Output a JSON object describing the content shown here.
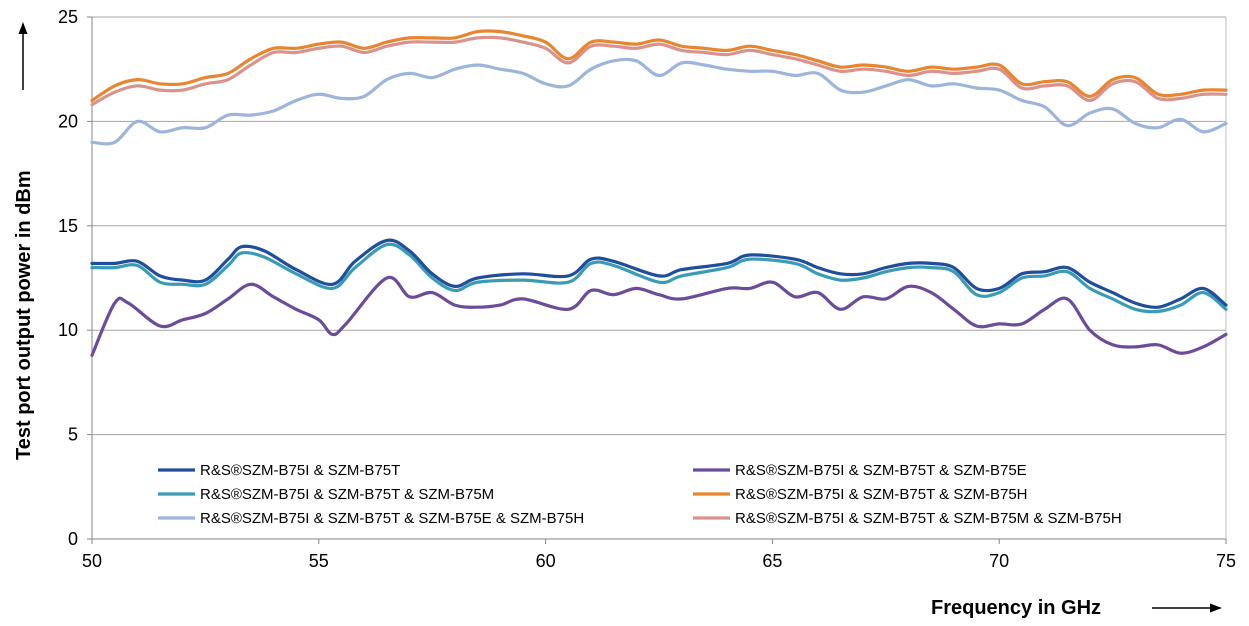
{
  "chart_data": {
    "type": "line",
    "title": "",
    "xlabel": "Frequency in GHz",
    "ylabel": "Test port output power in dBm",
    "xlim": [
      50,
      75
    ],
    "ylim": [
      0,
      25
    ],
    "xticks": [
      50,
      55,
      60,
      65,
      70,
      75
    ],
    "yticks": [
      0,
      5,
      10,
      15,
      20,
      25
    ],
    "grid": "horizontal",
    "legend_position": "bottom-inside",
    "series": [
      {
        "name": "R&S®SZM-B75I & SZM-B75T",
        "color": "#1F4E9C",
        "x": [
          50,
          50.5,
          51,
          51.5,
          52,
          52.5,
          53,
          53.3,
          53.8,
          54.5,
          55.3,
          55.8,
          56.5,
          57,
          57.5,
          58,
          58.5,
          59.5,
          60.5,
          61,
          61.5,
          62.5,
          63,
          64,
          64.5,
          65.5,
          66,
          66.5,
          67,
          67.5,
          68,
          68.5,
          69,
          69.5,
          70,
          70.5,
          71,
          71.5,
          72,
          72.5,
          73,
          73.5,
          74,
          74.5,
          75
        ],
        "y": [
          13.2,
          13.2,
          13.3,
          12.6,
          12.4,
          12.4,
          13.4,
          14.0,
          13.8,
          12.9,
          12.2,
          13.3,
          14.3,
          13.8,
          12.7,
          12.1,
          12.5,
          12.7,
          12.6,
          13.4,
          13.3,
          12.6,
          12.9,
          13.2,
          13.6,
          13.4,
          13.0,
          12.7,
          12.7,
          13.0,
          13.2,
          13.2,
          13.0,
          12.0,
          12.0,
          12.7,
          12.8,
          13.0,
          12.3,
          11.8,
          11.3,
          11.1,
          11.5,
          12.0,
          11.2
        ]
      },
      {
        "name": "R&S®SZM-B75I & SZM-B75T & SZM-B75E",
        "color": "#6B4C9A",
        "x": [
          50,
          50.5,
          50.8,
          51.5,
          52,
          52.5,
          53,
          53.5,
          54,
          54.5,
          55,
          55.3,
          55.6,
          56.5,
          57,
          57.5,
          58,
          58.5,
          59,
          59.5,
          60.5,
          61,
          61.5,
          62,
          62.5,
          63,
          64,
          64.5,
          65,
          65.5,
          66,
          66.5,
          67,
          67.5,
          68,
          68.5,
          69,
          69.5,
          70,
          70.5,
          71,
          71.5,
          72,
          72.5,
          73,
          73.5,
          74,
          74.5,
          75
        ],
        "y": [
          8.8,
          11.3,
          11.3,
          10.2,
          10.5,
          10.8,
          11.5,
          12.2,
          11.6,
          11.0,
          10.5,
          9.8,
          10.3,
          12.5,
          11.6,
          11.8,
          11.2,
          11.1,
          11.2,
          11.5,
          11.0,
          11.9,
          11.7,
          12.0,
          11.7,
          11.5,
          12.0,
          12.0,
          12.3,
          11.6,
          11.8,
          11.0,
          11.6,
          11.5,
          12.1,
          11.8,
          11.0,
          10.2,
          10.3,
          10.3,
          11.0,
          11.5,
          10.0,
          9.3,
          9.2,
          9.3,
          8.9,
          9.2,
          9.8
        ]
      },
      {
        "name": "R&S®SZM-B75I & SZM-B75T & SZM-B75M",
        "color": "#3A9BB5",
        "x": [
          50,
          50.5,
          51,
          51.5,
          52,
          52.5,
          53,
          53.3,
          53.8,
          54.5,
          55.3,
          55.8,
          56.5,
          57,
          57.5,
          58,
          58.5,
          59.5,
          60.5,
          61,
          61.5,
          62.5,
          63,
          64,
          64.5,
          65.5,
          66,
          66.5,
          67,
          67.5,
          68,
          68.5,
          69,
          69.5,
          70,
          70.5,
          71,
          71.5,
          72,
          72.5,
          73,
          73.5,
          74,
          74.5,
          75
        ],
        "y": [
          13.0,
          13.0,
          13.1,
          12.3,
          12.2,
          12.2,
          13.1,
          13.7,
          13.5,
          12.7,
          12.0,
          13.0,
          14.1,
          13.6,
          12.5,
          11.9,
          12.3,
          12.4,
          12.3,
          13.2,
          13.1,
          12.3,
          12.6,
          13.0,
          13.4,
          13.2,
          12.7,
          12.4,
          12.5,
          12.8,
          13.0,
          13.0,
          12.8,
          11.7,
          11.8,
          12.5,
          12.6,
          12.8,
          12.0,
          11.5,
          11.0,
          10.9,
          11.2,
          11.8,
          11.0
        ]
      },
      {
        "name": "R&S®SZM-B75I & SZM-B75T & SZM-B75H",
        "color": "#E8852F",
        "x": [
          50,
          50.5,
          51,
          51.5,
          52,
          52.5,
          53,
          53.5,
          54,
          54.5,
          55,
          55.5,
          56,
          56.5,
          57,
          57.5,
          58,
          58.5,
          59,
          59.5,
          60,
          60.5,
          61,
          61.5,
          62,
          62.5,
          63,
          63.5,
          64,
          64.5,
          65,
          65.5,
          66,
          66.5,
          67,
          67.5,
          68,
          68.5,
          69,
          69.5,
          70,
          70.5,
          71,
          71.5,
          72,
          72.5,
          73,
          73.5,
          74,
          74.5,
          75
        ],
        "y": [
          21.0,
          21.7,
          22.0,
          21.8,
          21.8,
          22.1,
          22.3,
          23.0,
          23.5,
          23.5,
          23.7,
          23.8,
          23.5,
          23.8,
          24.0,
          24.0,
          24.0,
          24.3,
          24.3,
          24.1,
          23.8,
          23.0,
          23.8,
          23.8,
          23.7,
          23.9,
          23.6,
          23.5,
          23.4,
          23.6,
          23.4,
          23.2,
          22.9,
          22.6,
          22.7,
          22.6,
          22.4,
          22.6,
          22.5,
          22.6,
          22.7,
          21.8,
          21.9,
          21.9,
          21.2,
          22.0,
          22.1,
          21.3,
          21.3,
          21.5,
          21.5
        ]
      },
      {
        "name": "R&S®SZM-B75I & SZM-B75T & SZM-B75E & SZM-B75H",
        "color": "#9DB4DB",
        "x": [
          50,
          50.5,
          51,
          51.5,
          52,
          52.5,
          53,
          53.5,
          54,
          54.5,
          55,
          55.5,
          56,
          56.5,
          57,
          57.5,
          58,
          58.5,
          59,
          59.5,
          60,
          60.5,
          61,
          61.5,
          62,
          62.5,
          63,
          63.5,
          64,
          64.5,
          65,
          65.5,
          66,
          66.5,
          67,
          67.5,
          68,
          68.5,
          69,
          69.5,
          70,
          70.5,
          71,
          71.5,
          72,
          72.5,
          73,
          73.5,
          74,
          74.5,
          75
        ],
        "y": [
          19.0,
          19.0,
          20.0,
          19.5,
          19.7,
          19.7,
          20.3,
          20.3,
          20.5,
          21.0,
          21.3,
          21.1,
          21.2,
          22.0,
          22.3,
          22.1,
          22.5,
          22.7,
          22.5,
          22.3,
          21.8,
          21.7,
          22.5,
          22.9,
          22.9,
          22.2,
          22.8,
          22.7,
          22.5,
          22.4,
          22.4,
          22.2,
          22.3,
          21.5,
          21.4,
          21.7,
          22.0,
          21.7,
          21.8,
          21.6,
          21.5,
          21.0,
          20.7,
          19.8,
          20.4,
          20.6,
          19.9,
          19.7,
          20.1,
          19.5,
          19.9
        ]
      },
      {
        "name": "R&S®SZM-B75I & SZM-B75T & SZM-B75M & SZM-B75H",
        "color": "#D9928E",
        "x": [
          50,
          50.5,
          51,
          51.5,
          52,
          52.5,
          53,
          53.5,
          54,
          54.5,
          55,
          55.5,
          56,
          56.5,
          57,
          57.5,
          58,
          58.5,
          59,
          59.5,
          60,
          60.5,
          61,
          61.5,
          62,
          62.5,
          63,
          63.5,
          64,
          64.5,
          65,
          65.5,
          66,
          66.5,
          67,
          67.5,
          68,
          68.5,
          69,
          69.5,
          70,
          70.5,
          71,
          71.5,
          72,
          72.5,
          73,
          73.5,
          74,
          74.5,
          75
        ],
        "y": [
          20.8,
          21.4,
          21.7,
          21.5,
          21.5,
          21.8,
          22.0,
          22.7,
          23.3,
          23.3,
          23.5,
          23.6,
          23.3,
          23.6,
          23.8,
          23.8,
          23.8,
          24.0,
          24.0,
          23.8,
          23.5,
          22.8,
          23.6,
          23.6,
          23.5,
          23.7,
          23.4,
          23.3,
          23.2,
          23.4,
          23.2,
          23.0,
          22.7,
          22.4,
          22.5,
          22.4,
          22.2,
          22.4,
          22.3,
          22.4,
          22.5,
          21.6,
          21.7,
          21.7,
          21.0,
          21.8,
          21.9,
          21.1,
          21.1,
          21.3,
          21.3
        ]
      }
    ]
  }
}
